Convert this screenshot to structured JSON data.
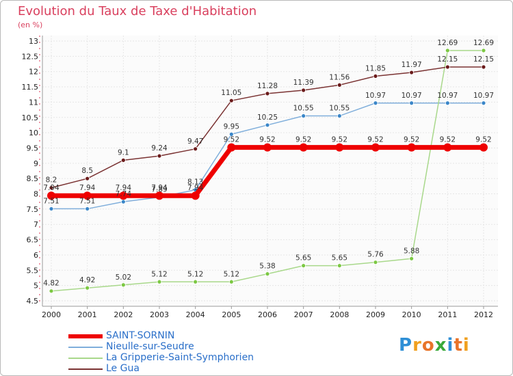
{
  "title": "Evolution du Taux de Taxe d'Habitation",
  "unit": "(en %)",
  "logo": {
    "letters": [
      {
        "ch": "P",
        "color": "#2e8fd6"
      },
      {
        "ch": "r",
        "color": "#f0a020"
      },
      {
        "ch": "o",
        "color": "#e8742a"
      },
      {
        "ch": "x",
        "color": "#3aa93a"
      },
      {
        "ch": "i",
        "color": "#2e8fd6"
      },
      {
        "ch": "t",
        "color": "#e8742a"
      },
      {
        "ch": "i",
        "color": "#f0a020"
      }
    ]
  },
  "chart_data": {
    "type": "line",
    "x": [
      "2000",
      "2001",
      "2002",
      "2003",
      "2004",
      "2005",
      "2006",
      "2007",
      "2008",
      "2009",
      "2010",
      "2011",
      "2012"
    ],
    "ylim": [
      4.5,
      13
    ],
    "yticks": [
      4.5,
      5,
      5.5,
      6,
      6.5,
      7,
      7.5,
      8,
      8.5,
      9,
      9.5,
      10,
      10.5,
      11,
      11.5,
      12,
      12.5,
      13
    ],
    "grid": true,
    "legend_position": "bottom-left",
    "series": [
      {
        "name": "SAINT-SORNIN",
        "color": "#ee0000",
        "marker": "#ee0000",
        "width": 7,
        "values": [
          7.94,
          7.94,
          7.94,
          7.94,
          7.94,
          9.52,
          9.52,
          9.52,
          9.52,
          9.52,
          9.52,
          9.52,
          9.52
        ]
      },
      {
        "name": "Nieulle-sur-Seudre",
        "color": "#7faedb",
        "marker": "#3a86c8",
        "width": 1.5,
        "values": [
          7.51,
          7.51,
          7.74,
          7.89,
          8.13,
          9.95,
          10.25,
          10.55,
          10.55,
          10.97,
          10.97,
          10.97,
          10.97
        ]
      },
      {
        "name": "La Gripperie-Saint-Symphorien",
        "color": "#a8d88a",
        "marker": "#7cc843",
        "width": 1.5,
        "values": [
          4.82,
          4.92,
          5.02,
          5.12,
          5.12,
          5.12,
          5.38,
          5.65,
          5.65,
          5.76,
          5.88,
          12.69,
          12.69
        ]
      },
      {
        "name": "Le Gua",
        "color": "#7a3232",
        "marker": "#6a1a1a",
        "width": 1.5,
        "values": [
          8.2,
          8.5,
          9.1,
          9.24,
          9.47,
          11.05,
          11.28,
          11.39,
          11.56,
          11.85,
          11.97,
          12.15,
          12.15
        ]
      }
    ],
    "data_labels": [
      [
        "7.94",
        "7.94",
        "7.94",
        "7.94",
        "7.94",
        "9.52",
        "9.52",
        "9.52",
        "9.52",
        "9.52",
        "9.52",
        "9.52",
        "9.52"
      ],
      [
        "7.51",
        "7.51",
        "7.74",
        "7.89",
        "8.13",
        "9.95",
        "10.25",
        "10.55",
        "10.55",
        "10.97",
        "10.97",
        "10.97",
        "10.97"
      ],
      [
        "4.82",
        "4.92",
        "5.02",
        "5.12",
        "5.12",
        "5.12",
        "5.38",
        "5.65",
        "5.65",
        "5.76",
        "5.88",
        "12.69",
        "12.69"
      ],
      [
        "8.2",
        "8.5",
        "9.1",
        "9.24",
        "9.47",
        "11.05",
        "11.28",
        "11.39",
        "11.56",
        "11.85",
        "11.97",
        "12.15",
        "12.15"
      ]
    ]
  }
}
